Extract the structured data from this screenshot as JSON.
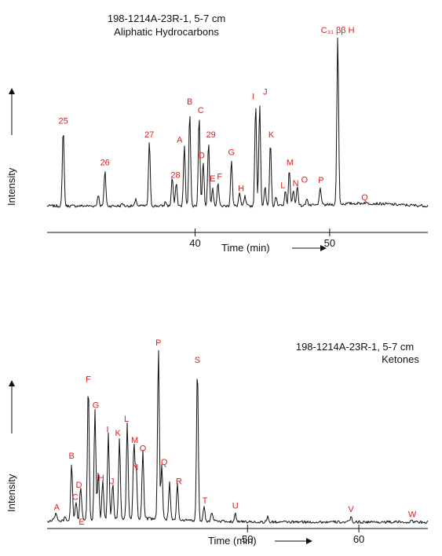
{
  "chart_data": [
    {
      "type": "line",
      "title": "198-1214A-23R-1, 5-7 cm",
      "subtitle": "Aliphatic Hydrocarbons",
      "xlabel": "Time (min)",
      "ylabel": "Intensity",
      "xlim": [
        29,
        57.3
      ],
      "ylim": [
        0,
        100
      ],
      "xticks": [
        40,
        50
      ],
      "grid": false,
      "baseline": 3.5,
      "peaks": [
        {
          "label": "25",
          "x": 30.2,
          "y": 48
        },
        {
          "label": "",
          "x": 32.8,
          "y": 10
        },
        {
          "label": "26",
          "x": 33.3,
          "y": 24
        },
        {
          "label": "",
          "x": 34.6,
          "y": 5
        },
        {
          "label": "",
          "x": 35.6,
          "y": 7
        },
        {
          "label": "27",
          "x": 36.6,
          "y": 40
        },
        {
          "label": "",
          "x": 37.8,
          "y": 6
        },
        {
          "label": "",
          "x": 38.3,
          "y": 20
        },
        {
          "label": "28",
          "x": 38.6,
          "y": 17
        },
        {
          "label": "A",
          "x": 39.2,
          "y": 38
        },
        {
          "label": "B",
          "x": 39.6,
          "y": 58
        },
        {
          "label": "C",
          "x": 40.3,
          "y": 55
        },
        {
          "label": "D",
          "x": 40.6,
          "y": 29
        },
        {
          "label": "29",
          "x": 41.0,
          "y": 40
        },
        {
          "label": "E",
          "x": 41.3,
          "y": 14
        },
        {
          "label": "F",
          "x": 41.7,
          "y": 17
        },
        {
          "label": "G",
          "x": 42.7,
          "y": 30
        },
        {
          "label": "H",
          "x": 43.3,
          "y": 11
        },
        {
          "label": "",
          "x": 43.7,
          "y": 9
        },
        {
          "label": "I",
          "x": 44.5,
          "y": 62
        },
        {
          "label": "J",
          "x": 44.8,
          "y": 62
        },
        {
          "label": "",
          "x": 45.2,
          "y": 14
        },
        {
          "label": "K",
          "x": 45.6,
          "y": 40
        },
        {
          "label": "",
          "x": 46.0,
          "y": 9
        },
        {
          "label": "L",
          "x": 46.7,
          "y": 12
        },
        {
          "label": "M",
          "x": 47.0,
          "y": 24
        },
        {
          "label": "N",
          "x": 47.3,
          "y": 13
        },
        {
          "label": "O",
          "x": 47.6,
          "y": 15
        },
        {
          "label": "",
          "x": 48.3,
          "y": 8
        },
        {
          "label": "P",
          "x": 49.3,
          "y": 14
        },
        {
          "label": "C₃₁ ββ H",
          "x": 50.6,
          "y": 100
        },
        {
          "label": "Q",
          "x": 52.6,
          "y": 4
        }
      ]
    },
    {
      "type": "line",
      "title": "198-1214A-23R-1, 5-7 cm",
      "subtitle": "Ketones",
      "xlabel": "Time (min)",
      "ylabel": "Intensity",
      "xlim": [
        32,
        66.2
      ],
      "ylim": [
        0,
        100
      ],
      "xticks": [
        50,
        60
      ],
      "grid": false,
      "baseline": 1,
      "peaks": [
        {
          "label": "",
          "x": 32.6,
          "y": 3
        },
        {
          "label": "A",
          "x": 32.8,
          "y": 6
        },
        {
          "label": "",
          "x": 33.6,
          "y": 3
        },
        {
          "label": "B",
          "x": 34.2,
          "y": 34
        },
        {
          "label": "C",
          "x": 34.6,
          "y": 12
        },
        {
          "label": "D",
          "x": 35.0,
          "y": 18
        },
        {
          "label": "E",
          "x": 35.1,
          "y": 5
        },
        {
          "label": "F",
          "x": 35.7,
          "y": 79
        },
        {
          "label": "G",
          "x": 36.3,
          "y": 64
        },
        {
          "label": "",
          "x": 36.6,
          "y": 28
        },
        {
          "label": "H",
          "x": 37.0,
          "y": 24
        },
        {
          "label": "I",
          "x": 37.5,
          "y": 50
        },
        {
          "label": "J",
          "x": 37.9,
          "y": 22
        },
        {
          "label": "K",
          "x": 38.5,
          "y": 48
        },
        {
          "label": "L",
          "x": 39.2,
          "y": 56
        },
        {
          "label": "M",
          "x": 39.8,
          "y": 44
        },
        {
          "label": "N",
          "x": 40.0,
          "y": 30
        },
        {
          "label": "O",
          "x": 40.6,
          "y": 40
        },
        {
          "label": "P",
          "x": 42.0,
          "y": 100
        },
        {
          "label": "Q",
          "x": 42.3,
          "y": 33
        },
        {
          "label": "",
          "x": 43.0,
          "y": 22
        },
        {
          "label": "R",
          "x": 43.7,
          "y": 22
        },
        {
          "label": "S",
          "x": 45.5,
          "y": 90
        },
        {
          "label": "T",
          "x": 46.1,
          "y": 10
        },
        {
          "label": "",
          "x": 46.8,
          "y": 6
        },
        {
          "label": "U",
          "x": 48.9,
          "y": 6
        },
        {
          "label": "",
          "x": 51.8,
          "y": 4
        },
        {
          "label": "V",
          "x": 59.3,
          "y": 4
        },
        {
          "label": "W",
          "x": 64.8,
          "y": 2
        }
      ]
    }
  ]
}
